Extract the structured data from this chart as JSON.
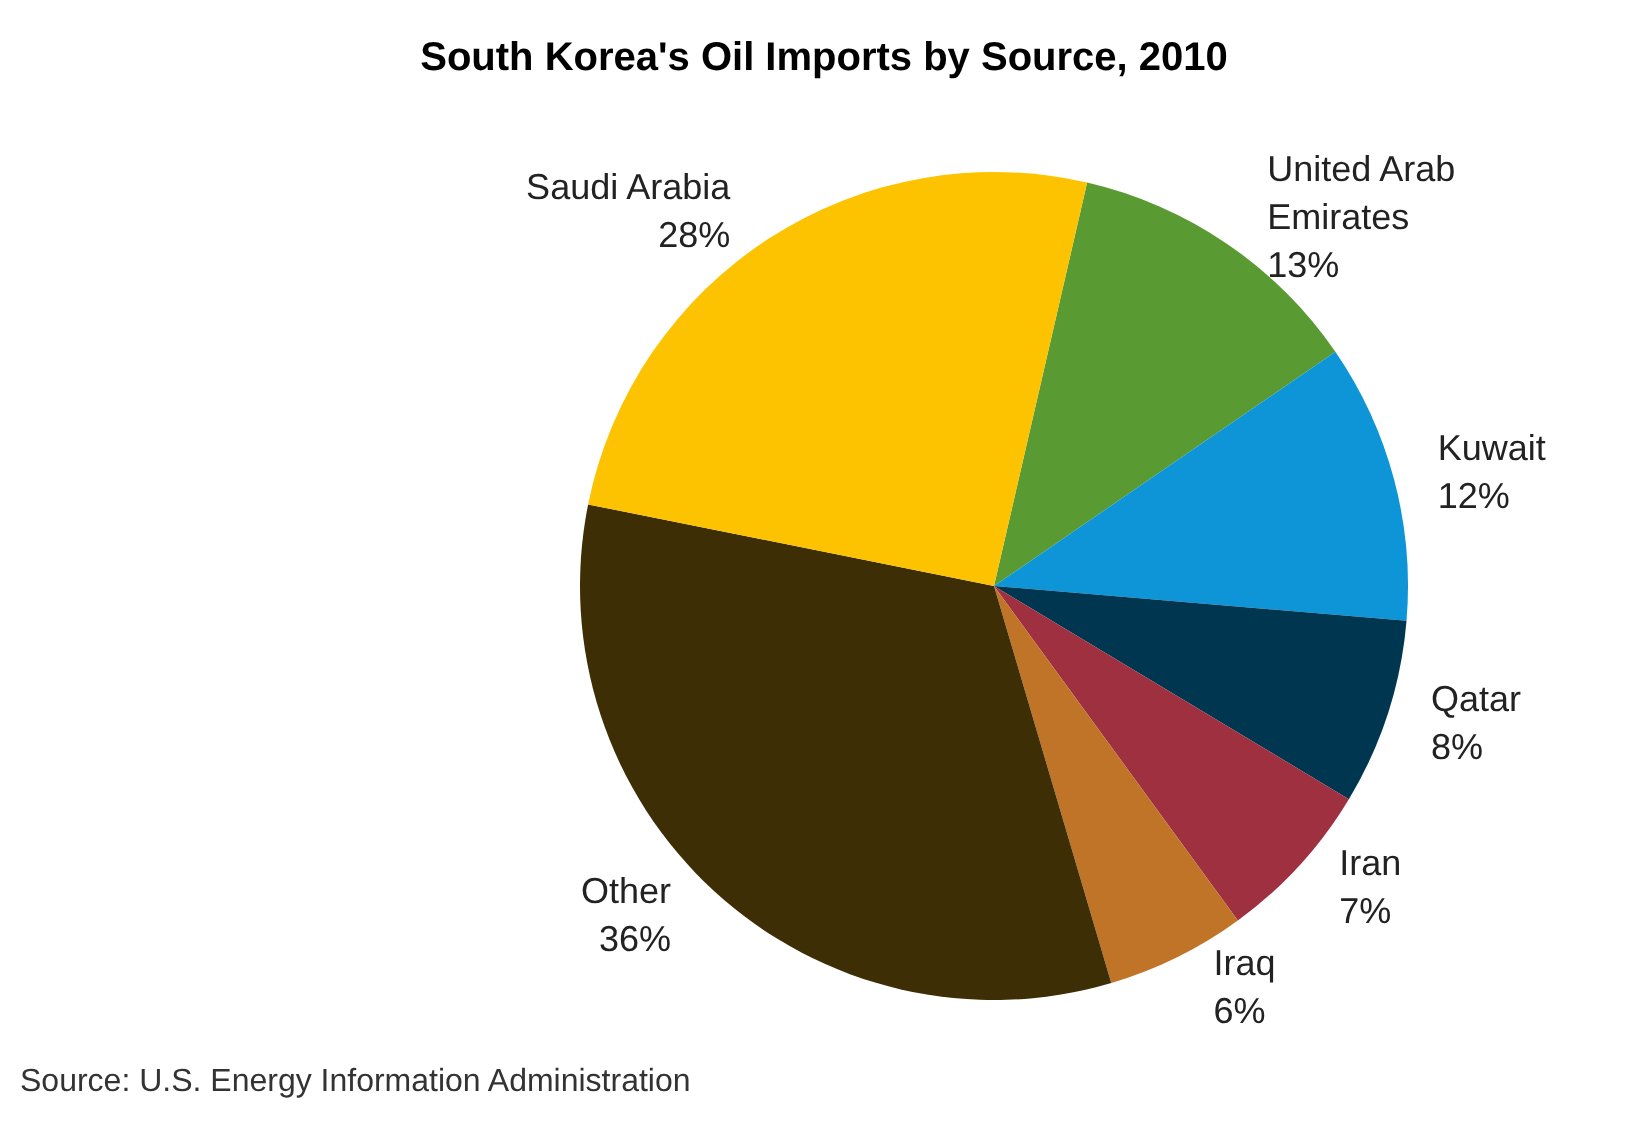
{
  "chart_data": {
    "type": "pie",
    "title": "South Korea's Oil Imports by Source, 2010",
    "categories": [
      "United Arab Emirates",
      "Kuwait",
      "Qatar",
      "Iran",
      "Iraq",
      "Other",
      "Saudi Arabia"
    ],
    "values": [
      13,
      12,
      8,
      7,
      6,
      36,
      28
    ],
    "value_labels": [
      "13%",
      "12%",
      "8%",
      "7%",
      "6%",
      "36%",
      "28%"
    ],
    "colors": [
      "#5a9a32",
      "#0d95d8",
      "#013651",
      "#9e3040",
      "#c07428",
      "#3d2e05",
      "#fdc300"
    ],
    "annotations": [
      "Source: U.S. Energy Information Administration"
    ],
    "legend": false
  }
}
